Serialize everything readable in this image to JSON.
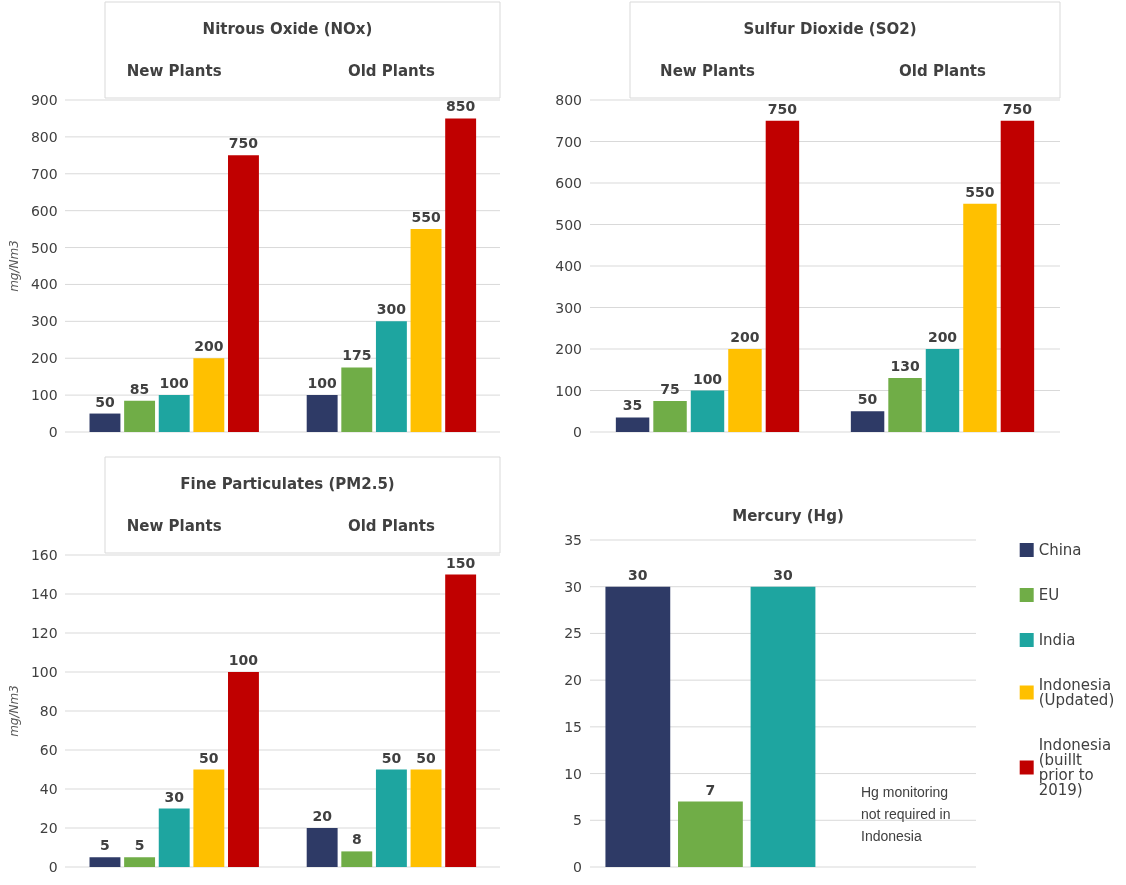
{
  "chart_data": [
    {
      "type": "bar",
      "title": "Nitrous Oxide (NOx)",
      "ylabel": "mg/Nm3",
      "categories": [
        "New Plants",
        "Old Plants"
      ],
      "ylim": [
        0,
        900
      ],
      "yticks": [
        0,
        100,
        200,
        300,
        400,
        500,
        600,
        700,
        800,
        900
      ],
      "grid": "y",
      "data_labels": true,
      "series": [
        {
          "color": "#2e3a66",
          "values": [
            50,
            100
          ]
        },
        {
          "color": "#70ad47",
          "values": [
            85,
            175
          ]
        },
        {
          "color": "#1ea5a0",
          "values": [
            100,
            300
          ]
        },
        {
          "color": "#ffc000",
          "values": [
            200,
            550
          ]
        },
        {
          "color": "#c00000",
          "values": [
            750,
            850
          ]
        }
      ]
    },
    {
      "type": "bar",
      "title": "Sulfur Dioxide (SO2)",
      "categories": [
        "New Plants",
        "Old Plants"
      ],
      "ylim": [
        0,
        800
      ],
      "yticks": [
        0,
        100,
        200,
        300,
        400,
        500,
        600,
        700,
        800
      ],
      "grid": "y",
      "data_labels": true,
      "series": [
        {
          "color": "#2e3a66",
          "values": [
            35,
            50
          ]
        },
        {
          "color": "#70ad47",
          "values": [
            75,
            130
          ]
        },
        {
          "color": "#1ea5a0",
          "values": [
            100,
            200
          ]
        },
        {
          "color": "#ffc000",
          "values": [
            200,
            550
          ]
        },
        {
          "color": "#c00000",
          "values": [
            750,
            750
          ]
        }
      ]
    },
    {
      "type": "bar",
      "title": "Fine Particulates (PM2.5)",
      "ylabel": "mg/Nm3",
      "categories": [
        "New Plants",
        "Old Plants"
      ],
      "ylim": [
        0,
        160
      ],
      "yticks": [
        0,
        20,
        40,
        60,
        80,
        100,
        120,
        140,
        160
      ],
      "grid": "y",
      "data_labels": true,
      "series": [
        {
          "color": "#2e3a66",
          "values": [
            5,
            20
          ]
        },
        {
          "color": "#70ad47",
          "values": [
            5,
            8
          ]
        },
        {
          "color": "#1ea5a0",
          "values": [
            30,
            50
          ]
        },
        {
          "color": "#ffc000",
          "values": [
            50,
            50
          ]
        },
        {
          "color": "#c00000",
          "values": [
            100,
            150
          ]
        }
      ]
    },
    {
      "type": "bar",
      "title": "Mercury (Hg)",
      "categories": [
        null
      ],
      "ylim": [
        0,
        35
      ],
      "yticks": [
        0,
        5,
        10,
        15,
        20,
        25,
        30,
        35
      ],
      "grid": "y",
      "data_labels": true,
      "legend": "right",
      "annotations": [
        "Hg monitoring not required in Indonesia"
      ],
      "series": [
        {
          "name": "China",
          "color": "#2e3a66",
          "values": [
            30
          ]
        },
        {
          "name": "EU",
          "color": "#70ad47",
          "values": [
            7
          ]
        },
        {
          "name": "India",
          "color": "#1ea5a0",
          "values": [
            30
          ]
        },
        {
          "name": "Indonesia (Updated)",
          "color": "#ffc000",
          "values": [
            null
          ]
        },
        {
          "name": "Indonesia (buillt prior to 2019)",
          "color": "#c00000",
          "values": [
            null
          ]
        }
      ]
    }
  ]
}
